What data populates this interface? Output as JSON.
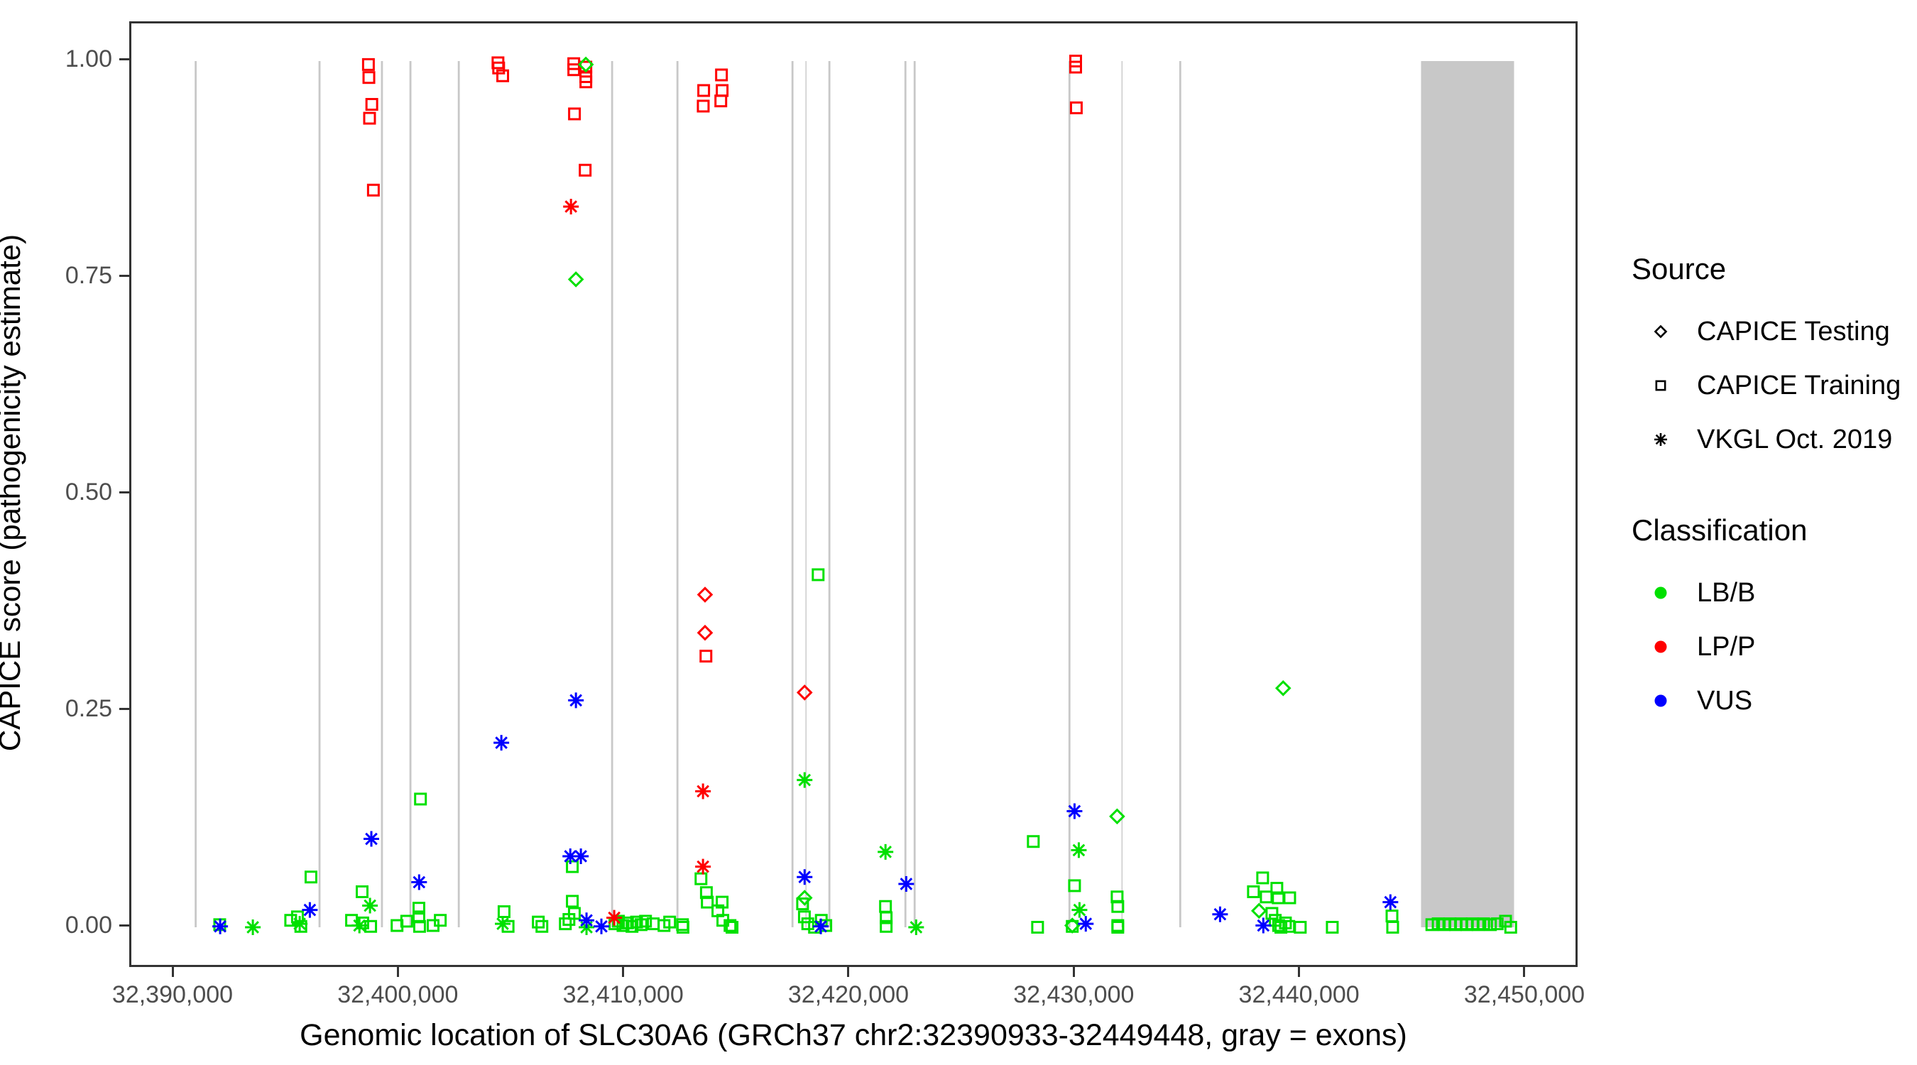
{
  "chart_data": {
    "type": "scatter",
    "title": "",
    "xlabel": "Genomic location of SLC30A6 (GRCh37 chr2:32390933-32449448, gray = exons)",
    "ylabel": "CAPICE score (pathogenicity estimate)",
    "xlim": [
      32388078,
      32452362
    ],
    "ylim": [
      -0.048,
      1.043
    ],
    "grid": false,
    "legend_position": "right",
    "x_axis": {
      "ticks": [
        32390000,
        32400000,
        32410000,
        32420000,
        32430000,
        32440000,
        32450000
      ],
      "labels": [
        "32,390,000",
        "32,400,000",
        "32,410,000",
        "32,420,000",
        "32,430,000",
        "32,440,000",
        "32,450,000"
      ]
    },
    "y_axis": {
      "ticks": [
        0,
        0.25,
        0.5,
        0.75,
        1
      ],
      "labels": [
        "0.00",
        "0.25",
        "0.50",
        "0.75",
        "1.00"
      ]
    },
    "exons": {
      "note": "gray = exons",
      "lines": [
        {
          "pos": 32390933,
          "thin": false
        },
        {
          "pos": 32396430,
          "thin": false
        },
        {
          "pos": 32399200,
          "thin": false
        },
        {
          "pos": 32400465,
          "thin": false
        },
        {
          "pos": 32402610,
          "thin": false
        },
        {
          "pos": 32409416,
          "thin": false
        },
        {
          "pos": 32412316,
          "thin": false
        },
        {
          "pos": 32417422,
          "thin": false
        },
        {
          "pos": 32418021,
          "thin": true
        },
        {
          "pos": 32419060,
          "thin": false
        },
        {
          "pos": 32422434,
          "thin": false
        },
        {
          "pos": 32422844,
          "thin": false
        },
        {
          "pos": 32429715,
          "thin": false
        },
        {
          "pos": 32432048,
          "thin": true
        },
        {
          "pos": 32434632,
          "thin": false
        }
      ],
      "rect": {
        "start": 32445320,
        "end": 32449448
      }
    },
    "series": [
      {
        "name": "LB/B · CAPICE Training",
        "classification": "LB/B",
        "source": "CAPICE Training",
        "marker": "square",
        "color": "#00e000",
        "points": [
          [
            32392000,
            0.003
          ],
          [
            32395150,
            0.008
          ],
          [
            32395450,
            0.012
          ],
          [
            32395600,
            0.001
          ],
          [
            32396050,
            0.058
          ],
          [
            32397850,
            0.008
          ],
          [
            32398320,
            0.041
          ],
          [
            32398350,
            0.005
          ],
          [
            32398700,
            0.001
          ],
          [
            32399870,
            0.002
          ],
          [
            32400300,
            0.007
          ],
          [
            32400840,
            0.022
          ],
          [
            32400840,
            0.012
          ],
          [
            32400870,
            0.001
          ],
          [
            32400910,
            0.148
          ],
          [
            32401470,
            0.002
          ],
          [
            32401790,
            0.008
          ],
          [
            32404620,
            0.018
          ],
          [
            32404800,
            0.001
          ],
          [
            32406140,
            0.006
          ],
          [
            32406300,
            0.001
          ],
          [
            32407340,
            0.004
          ],
          [
            32407500,
            0.009
          ],
          [
            32407650,
            0.07
          ],
          [
            32407650,
            0.03
          ],
          [
            32407740,
            0.016
          ],
          [
            32409540,
            0.004
          ],
          [
            32409700,
            0.007
          ],
          [
            32409900,
            0.002
          ],
          [
            32410100,
            0.005
          ],
          [
            32410300,
            0.001
          ],
          [
            32410500,
            0.006
          ],
          [
            32410700,
            0.003
          ],
          [
            32410900,
            0.007
          ],
          [
            32411240,
            0.004
          ],
          [
            32411720,
            0.002
          ],
          [
            32411970,
            0.006
          ],
          [
            32412540,
            0.003
          ],
          [
            32412560,
            0.0
          ],
          [
            32413360,
            0.056
          ],
          [
            32413600,
            0.04
          ],
          [
            32413640,
            0.029
          ],
          [
            32414300,
            0.029
          ],
          [
            32414110,
            0.019
          ],
          [
            32414330,
            0.008
          ],
          [
            32414650,
            0.002
          ],
          [
            32414740,
            0.0
          ],
          [
            32418560,
            0.407
          ],
          [
            32417870,
            0.027
          ],
          [
            32417950,
            0.012
          ],
          [
            32418100,
            0.004
          ],
          [
            32418400,
            0.0
          ],
          [
            32418700,
            0.008
          ],
          [
            32418900,
            0.002
          ],
          [
            32421550,
            0.024
          ],
          [
            32421580,
            0.011
          ],
          [
            32421580,
            0.001
          ],
          [
            32428110,
            0.099
          ],
          [
            32428300,
            0.0
          ],
          [
            32429940,
            0.048
          ],
          [
            32429840,
            0.001
          ],
          [
            32431830,
            0.035
          ],
          [
            32431860,
            0.024
          ],
          [
            32431860,
            0.002
          ],
          [
            32431860,
            0.0
          ],
          [
            32437880,
            0.041
          ],
          [
            32438290,
            0.057
          ],
          [
            32438450,
            0.035
          ],
          [
            32438920,
            0.045
          ],
          [
            32438980,
            0.034
          ],
          [
            32439490,
            0.034
          ],
          [
            32438700,
            0.016
          ],
          [
            32438850,
            0.008
          ],
          [
            32439000,
            0.002
          ],
          [
            32439100,
            0.0
          ],
          [
            32439300,
            0.005
          ],
          [
            32439450,
            0.001
          ],
          [
            32439960,
            0.0
          ],
          [
            32441380,
            0.0
          ],
          [
            32444030,
            0.013
          ],
          [
            32444060,
            0.0
          ],
          [
            32445800,
            0.003
          ],
          [
            32446080,
            0.004
          ],
          [
            32446350,
            0.003
          ],
          [
            32446600,
            0.004
          ],
          [
            32446850,
            0.003
          ],
          [
            32447100,
            0.004
          ],
          [
            32447350,
            0.003
          ],
          [
            32447600,
            0.004
          ],
          [
            32447850,
            0.003
          ],
          [
            32448100,
            0.004
          ],
          [
            32448400,
            0.003
          ],
          [
            32448700,
            0.004
          ],
          [
            32449070,
            0.007
          ],
          [
            32449300,
            0.0
          ]
        ]
      },
      {
        "name": "LP/P · CAPICE Training",
        "classification": "LP/P",
        "source": "CAPICE Training",
        "marker": "square",
        "color": "#ff0000",
        "points": [
          [
            32398600,
            0.996
          ],
          [
            32398620,
            0.981
          ],
          [
            32398750,
            0.95
          ],
          [
            32398650,
            0.934
          ],
          [
            32398820,
            0.851
          ],
          [
            32404350,
            0.998
          ],
          [
            32404380,
            0.992
          ],
          [
            32404560,
            0.983
          ],
          [
            32407714,
            0.997
          ],
          [
            32407714,
            0.99
          ],
          [
            32408250,
            0.993
          ],
          [
            32408250,
            0.982
          ],
          [
            32408250,
            0.976
          ],
          [
            32407745,
            0.939
          ],
          [
            32408220,
            0.874
          ],
          [
            32413480,
            0.966
          ],
          [
            32413460,
            0.948
          ],
          [
            32413580,
            0.313
          ],
          [
            32414270,
            0.984
          ],
          [
            32414300,
            0.966
          ],
          [
            32414240,
            0.954
          ],
          [
            32429990,
            1.0
          ],
          [
            32429990,
            0.993
          ],
          [
            32430020,
            0.946
          ]
        ]
      },
      {
        "name": "LB/B · CAPICE Testing",
        "classification": "LB/B",
        "source": "CAPICE Testing",
        "marker": "diamond",
        "color": "#00e000",
        "points": [
          [
            32408250,
            0.996
          ],
          [
            32407810,
            0.748
          ],
          [
            32417960,
            0.034
          ],
          [
            32429840,
            0.002
          ],
          [
            32431830,
            0.128
          ],
          [
            32438130,
            0.019
          ],
          [
            32439200,
            0.276
          ]
        ]
      },
      {
        "name": "LP/P · CAPICE Testing",
        "classification": "LP/P",
        "source": "CAPICE Testing",
        "marker": "diamond",
        "color": "#ff0000",
        "points": [
          [
            32413540,
            0.384
          ],
          [
            32413540,
            0.34
          ],
          [
            32417960,
            0.271
          ]
        ]
      },
      {
        "name": "LB/B · VKGL Oct. 2019",
        "classification": "LB/B",
        "source": "VKGL Oct. 2019",
        "marker": "asterisk",
        "color": "#00e000",
        "points": [
          [
            32393470,
            0.0
          ],
          [
            32395550,
            0.004
          ],
          [
            32398200,
            0.002
          ],
          [
            32398670,
            0.025
          ],
          [
            32404560,
            0.004
          ],
          [
            32408280,
            0.0
          ],
          [
            32417960,
            0.17
          ],
          [
            32421550,
            0.087
          ],
          [
            32422910,
            0.0
          ],
          [
            32430130,
            0.089
          ],
          [
            32430160,
            0.02
          ]
        ]
      },
      {
        "name": "LP/P · VKGL Oct. 2019",
        "classification": "LP/P",
        "source": "VKGL Oct. 2019",
        "marker": "asterisk",
        "color": "#ff0000",
        "points": [
          [
            32407590,
            0.832
          ],
          [
            32409510,
            0.011
          ],
          [
            32413450,
            0.157
          ],
          [
            32413450,
            0.07
          ]
        ]
      },
      {
        "name": "VUS · VKGL Oct. 2019",
        "classification": "VUS",
        "source": "VKGL Oct. 2019",
        "marker": "asterisk",
        "color": "#0000ff",
        "points": [
          [
            32392020,
            0.001
          ],
          [
            32396000,
            0.02
          ],
          [
            32398730,
            0.102
          ],
          [
            32400850,
            0.052
          ],
          [
            32404500,
            0.213
          ],
          [
            32407560,
            0.082
          ],
          [
            32408030,
            0.082
          ],
          [
            32407810,
            0.262
          ],
          [
            32408280,
            0.008
          ],
          [
            32408940,
            0.001
          ],
          [
            32417960,
            0.058
          ],
          [
            32418680,
            0.001
          ],
          [
            32422470,
            0.05
          ],
          [
            32429940,
            0.134
          ],
          [
            32430440,
            0.004
          ],
          [
            32436400,
            0.015
          ],
          [
            32438320,
            0.002
          ],
          [
            32443960,
            0.029
          ]
        ]
      }
    ]
  },
  "legend": {
    "source": {
      "title": "Source",
      "items": [
        {
          "label": "CAPICE Testing",
          "marker": "diamond"
        },
        {
          "label": "CAPICE Training",
          "marker": "square"
        },
        {
          "label": "VKGL Oct. 2019",
          "marker": "asterisk"
        }
      ]
    },
    "classification": {
      "title": "Classification",
      "items": [
        {
          "label": "LB/B",
          "color": "#00e000"
        },
        {
          "label": "LP/P",
          "color": "#ff0000"
        },
        {
          "label": "VUS",
          "color": "#0000ff"
        }
      ]
    }
  },
  "colors": {
    "lb_b": "#00e000",
    "lp_p": "#ff0000",
    "vus": "#0000ff",
    "exon_gray": "#c8c8c8",
    "axis_text": "#4d4d4d",
    "axis_line": "#333333",
    "legend_glyph": "#000000"
  }
}
